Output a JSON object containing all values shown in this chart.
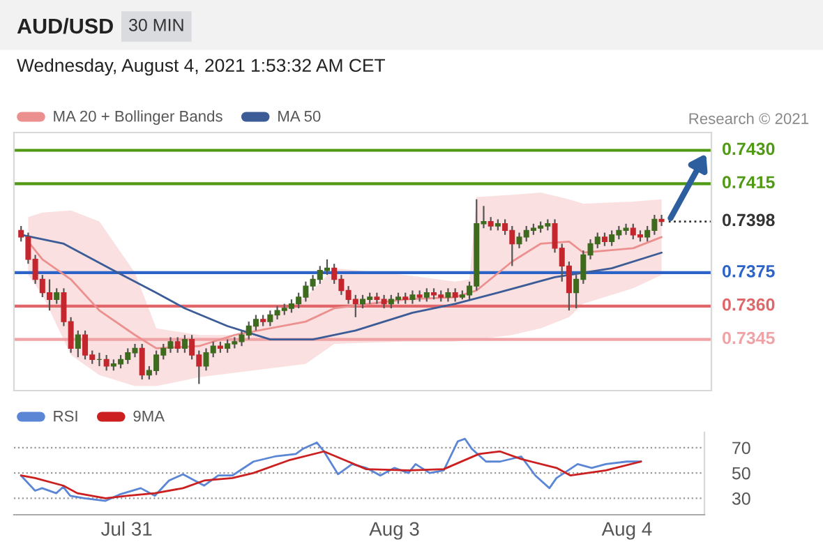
{
  "chart_data": [
    {
      "type": "candlestick",
      "title": "AUD/USD",
      "subtitle": "Wednesday, August 4, 2021 1:53:32 AM CET",
      "annotations": [
        "30 MIN",
        "Research © 2021"
      ],
      "categories": [
        null,
        null,
        null,
        null,
        null,
        null,
        null,
        null,
        null,
        null,
        null,
        null,
        null,
        null,
        null,
        null,
        null,
        null,
        null,
        null,
        null,
        null,
        null,
        null,
        null,
        null,
        null,
        null,
        null,
        null,
        null,
        null,
        null,
        null,
        null,
        null,
        null,
        null,
        null,
        null,
        null,
        null,
        null,
        null,
        null,
        null,
        null,
        null,
        null,
        null,
        null,
        null,
        null,
        null,
        null,
        null,
        null,
        null,
        null,
        null,
        null,
        null,
        null,
        null,
        null,
        null,
        null,
        null,
        null,
        null,
        null,
        null,
        null,
        null,
        null,
        null,
        null,
        null,
        null,
        null,
        null,
        null,
        null,
        null,
        null,
        null,
        null,
        null,
        null,
        null,
        null
      ],
      "ohlc": [
        [
          0.7394,
          0.7396,
          0.7389,
          0.7391
        ],
        [
          0.7391,
          0.7393,
          0.7379,
          0.7381
        ],
        [
          0.7381,
          0.7383,
          0.737,
          0.7372
        ],
        [
          0.7372,
          0.7374,
          0.7364,
          0.7366
        ],
        [
          0.7366,
          0.7372,
          0.7358,
          0.7363
        ],
        [
          0.7363,
          0.7368,
          0.7361,
          0.7366
        ],
        [
          0.7366,
          0.7368,
          0.7351,
          0.7353
        ],
        [
          0.7353,
          0.7355,
          0.7339,
          0.7341
        ],
        [
          0.7341,
          0.7349,
          0.7337,
          0.7347
        ],
        [
          0.7347,
          0.7349,
          0.7336,
          0.7338
        ],
        [
          0.7338,
          0.734,
          0.7334,
          0.7336
        ],
        [
          0.7336,
          0.7339,
          0.7333,
          0.7336
        ],
        [
          0.7336,
          0.7338,
          0.7331,
          0.7333
        ],
        [
          0.7333,
          0.7336,
          0.7331,
          0.7334
        ],
        [
          0.7334,
          0.7338,
          0.7332,
          0.7336
        ],
        [
          0.7336,
          0.7341,
          0.7334,
          0.7339
        ],
        [
          0.7339,
          0.7343,
          0.7337,
          0.7341
        ],
        [
          0.7341,
          0.7343,
          0.7327,
          0.7329
        ],
        [
          0.7329,
          0.7333,
          0.7327,
          0.7331
        ],
        [
          0.7331,
          0.734,
          0.7329,
          0.7338
        ],
        [
          0.7338,
          0.7343,
          0.7336,
          0.7341
        ],
        [
          0.7341,
          0.7346,
          0.7339,
          0.7344
        ],
        [
          0.7344,
          0.7346,
          0.7339,
          0.7341
        ],
        [
          0.7341,
          0.7347,
          0.7339,
          0.7345
        ],
        [
          0.7345,
          0.7347,
          0.7336,
          0.7338
        ],
        [
          0.7338,
          0.734,
          0.7325,
          0.7333
        ],
        [
          0.7333,
          0.7341,
          0.7331,
          0.7339
        ],
        [
          0.7339,
          0.7344,
          0.7337,
          0.7342
        ],
        [
          0.7342,
          0.7344,
          0.7339,
          0.7341
        ],
        [
          0.7341,
          0.7345,
          0.7339,
          0.7343
        ],
        [
          0.7343,
          0.7346,
          0.7341,
          0.7344
        ],
        [
          0.7344,
          0.7349,
          0.7342,
          0.7347
        ],
        [
          0.7347,
          0.7353,
          0.7345,
          0.7351
        ],
        [
          0.7351,
          0.7356,
          0.7349,
          0.7354
        ],
        [
          0.7354,
          0.7356,
          0.7351,
          0.7353
        ],
        [
          0.7353,
          0.7358,
          0.7351,
          0.7356
        ],
        [
          0.7356,
          0.736,
          0.7354,
          0.7358
        ],
        [
          0.7358,
          0.7361,
          0.7356,
          0.7359
        ],
        [
          0.7359,
          0.7363,
          0.7357,
          0.7361
        ],
        [
          0.7361,
          0.7366,
          0.7359,
          0.7364
        ],
        [
          0.7364,
          0.7371,
          0.7362,
          0.7369
        ],
        [
          0.7369,
          0.7374,
          0.7367,
          0.7372
        ],
        [
          0.7372,
          0.7378,
          0.737,
          0.7376
        ],
        [
          0.7376,
          0.7381,
          0.7374,
          0.7377
        ],
        [
          0.7377,
          0.7379,
          0.737,
          0.7372
        ],
        [
          0.7372,
          0.7374,
          0.7365,
          0.7367
        ],
        [
          0.7367,
          0.7369,
          0.7361,
          0.7363
        ],
        [
          0.7363,
          0.7365,
          0.7355,
          0.7361
        ],
        [
          0.7361,
          0.7365,
          0.7359,
          0.7363
        ],
        [
          0.7363,
          0.7366,
          0.7361,
          0.7364
        ],
        [
          0.7364,
          0.7366,
          0.7361,
          0.7363
        ],
        [
          0.7363,
          0.7365,
          0.7359,
          0.7361
        ],
        [
          0.7361,
          0.7365,
          0.7359,
          0.7363
        ],
        [
          0.7363,
          0.7366,
          0.7361,
          0.7364
        ],
        [
          0.7364,
          0.7366,
          0.7361,
          0.7363
        ],
        [
          0.7363,
          0.7367,
          0.7361,
          0.7365
        ],
        [
          0.7365,
          0.7367,
          0.7362,
          0.7364
        ],
        [
          0.7364,
          0.7368,
          0.7362,
          0.7366
        ],
        [
          0.7366,
          0.7368,
          0.7363,
          0.7365
        ],
        [
          0.7365,
          0.7367,
          0.7362,
          0.7364
        ],
        [
          0.7364,
          0.7368,
          0.7362,
          0.7366
        ],
        [
          0.7366,
          0.7368,
          0.7362,
          0.7364
        ],
        [
          0.7364,
          0.7367,
          0.7363,
          0.7365
        ],
        [
          0.7365,
          0.7371,
          0.7363,
          0.7369
        ],
        [
          0.7369,
          0.7408,
          0.7367,
          0.7397
        ],
        [
          0.7397,
          0.7405,
          0.7395,
          0.7398
        ],
        [
          0.7398,
          0.74,
          0.7394,
          0.7396
        ],
        [
          0.7396,
          0.7399,
          0.7394,
          0.7397
        ],
        [
          0.7397,
          0.7399,
          0.7392,
          0.7394
        ],
        [
          0.7394,
          0.7396,
          0.7378,
          0.7388
        ],
        [
          0.7388,
          0.7393,
          0.7386,
          0.7391
        ],
        [
          0.7391,
          0.7396,
          0.7389,
          0.7394
        ],
        [
          0.7394,
          0.7397,
          0.7392,
          0.7395
        ],
        [
          0.7395,
          0.7398,
          0.7393,
          0.7396
        ],
        [
          0.7396,
          0.7399,
          0.7394,
          0.7397
        ],
        [
          0.7397,
          0.7399,
          0.7384,
          0.7386
        ],
        [
          0.7386,
          0.7388,
          0.7371,
          0.7378
        ],
        [
          0.7378,
          0.738,
          0.7358,
          0.7366
        ],
        [
          0.7366,
          0.7374,
          0.7359,
          0.7372
        ],
        [
          0.7372,
          0.7385,
          0.737,
          0.7383
        ],
        [
          0.7383,
          0.739,
          0.7381,
          0.7388
        ],
        [
          0.7388,
          0.7393,
          0.7386,
          0.7391
        ],
        [
          0.7391,
          0.7393,
          0.7387,
          0.7389
        ],
        [
          0.7389,
          0.7394,
          0.7387,
          0.7392
        ],
        [
          0.7392,
          0.7396,
          0.739,
          0.7394
        ],
        [
          0.7394,
          0.7397,
          0.7392,
          0.7395
        ],
        [
          0.7395,
          0.7397,
          0.739,
          0.7392
        ],
        [
          0.7392,
          0.7394,
          0.7389,
          0.7391
        ],
        [
          0.7391,
          0.7396,
          0.7389,
          0.7394
        ],
        [
          0.7394,
          0.7401,
          0.7392,
          0.7399
        ],
        [
          0.7399,
          0.7401,
          0.7396,
          0.7398
        ]
      ],
      "colors": [
        "#c4262e",
        "#c4262e",
        "#c4262e",
        "#c4262e",
        "#c4262e",
        "#3e6b1e",
        "#c4262e",
        "#c4262e",
        "#3e6b1e",
        "#c4262e",
        "#c4262e",
        "#3e6b1e",
        "#c4262e",
        "#3e6b1e",
        "#3e6b1e",
        "#3e6b1e",
        "#3e6b1e",
        "#c4262e",
        "#3e6b1e",
        "#3e6b1e",
        "#3e6b1e",
        "#3e6b1e",
        "#c4262e",
        "#3e6b1e",
        "#c4262e",
        "#c4262e",
        "#3e6b1e",
        "#3e6b1e",
        "#c4262e",
        "#3e6b1e",
        "#3e6b1e",
        "#3e6b1e",
        "#3e6b1e",
        "#3e6b1e",
        "#c4262e",
        "#3e6b1e",
        "#3e6b1e",
        "#3e6b1e",
        "#3e6b1e",
        "#3e6b1e",
        "#3e6b1e",
        "#3e6b1e",
        "#3e6b1e",
        "#3e6b1e",
        "#c4262e",
        "#c4262e",
        "#c4262e",
        "#c4262e",
        "#3e6b1e",
        "#3e6b1e",
        "#c4262e",
        "#c4262e",
        "#3e6b1e",
        "#3e6b1e",
        "#c4262e",
        "#3e6b1e",
        "#c4262e",
        "#3e6b1e",
        "#c4262e",
        "#c4262e",
        "#3e6b1e",
        "#c4262e",
        "#3e6b1e",
        "#3e6b1e",
        "#3e6b1e",
        "#3e6b1e",
        "#c4262e",
        "#3e6b1e",
        "#c4262e",
        "#c4262e",
        "#3e6b1e",
        "#3e6b1e",
        "#3e6b1e",
        "#3e6b1e",
        "#3e6b1e",
        "#c4262e",
        "#c4262e",
        "#c4262e",
        "#3e6b1e",
        "#3e6b1e",
        "#3e6b1e",
        "#3e6b1e",
        "#c4262e",
        "#3e6b1e",
        "#3e6b1e",
        "#3e6b1e",
        "#c4262e",
        "#c4262e",
        "#3e6b1e",
        "#3e6b1e",
        "#c4262e"
      ],
      "series": [
        {
          "name": "MA 20 + Bollinger Bands",
          "type": "line",
          "color": "#ec8f8f",
          "values": [
            null,
            0.7389,
            null,
            0.7381,
            null,
            null,
            null,
            0.7372,
            null,
            null,
            null,
            0.7358,
            null,
            null,
            null,
            null,
            0.7347,
            null,
            null,
            0.7341,
            null,
            null,
            null,
            null,
            null,
            0.7342,
            null,
            null,
            null,
            null,
            0.7347,
            null,
            null,
            null,
            null,
            null,
            null,
            null,
            null,
            null,
            0.7353,
            null,
            null,
            null,
            0.7359,
            null,
            null,
            null,
            null,
            null,
            null,
            null,
            null,
            null,
            0.7363,
            null,
            null,
            null,
            null,
            null,
            null,
            0.7364,
            null,
            0.7366,
            0.7367,
            null,
            null,
            null,
            null,
            0.738,
            null,
            null,
            null,
            0.7388,
            null,
            null,
            null,
            0.7389,
            null,
            0.7384,
            null,
            null,
            null,
            null,
            null,
            null,
            0.7386,
            null,
            null,
            null,
            0.7391
          ],
          "lower": [
            null,
            0.7374,
            null,
            0.7365,
            null,
            null,
            null,
            0.7338,
            null,
            null,
            null,
            0.7329,
            null,
            null,
            null,
            null,
            0.7324,
            null,
            null,
            0.7324,
            null,
            null,
            null,
            null,
            null,
            0.7328,
            null,
            null,
            null,
            null,
            0.733,
            null,
            null,
            null,
            null,
            null,
            null,
            null,
            null,
            null,
            0.7334,
            null,
            null,
            null,
            0.7343,
            null,
            null,
            null,
            null,
            null,
            null,
            null,
            null,
            null,
            0.7344,
            null,
            null,
            null,
            null,
            null,
            null,
            0.7344,
            null,
            0.7345,
            0.7345,
            null,
            null,
            null,
            null,
            0.7347,
            null,
            null,
            null,
            0.735,
            null,
            null,
            null,
            0.7355,
            null,
            0.7361,
            null,
            null,
            null,
            null,
            null,
            null,
            0.7368,
            null,
            null,
            null,
            0.7374
          ],
          "upper": [
            null,
            0.74,
            null,
            0.7402,
            null,
            null,
            null,
            0.7403,
            null,
            null,
            null,
            0.7398,
            null,
            null,
            null,
            null,
            0.7375,
            null,
            null,
            0.735,
            null,
            null,
            null,
            null,
            null,
            0.7347,
            null,
            null,
            null,
            null,
            0.7347,
            null,
            null,
            null,
            null,
            null,
            null,
            null,
            null,
            null,
            0.7364,
            null,
            null,
            null,
            0.7377,
            null,
            null,
            null,
            null,
            null,
            null,
            null,
            null,
            null,
            0.7374,
            null,
            null,
            null,
            null,
            null,
            null,
            0.7371,
            null,
            0.7372,
            0.7409,
            null,
            null,
            null,
            null,
            0.741,
            null,
            null,
            null,
            0.7411,
            null,
            null,
            null,
            0.7408,
            null,
            0.7406,
            null,
            null,
            null,
            null,
            null,
            null,
            0.7407,
            null,
            null,
            null,
            0.7408
          ]
        },
        {
          "name": "MA 50",
          "type": "line",
          "color": "#3b5c96",
          "values": [
            0.7392,
            null,
            null,
            null,
            null,
            null,
            0.7388,
            null,
            null,
            null,
            null,
            null,
            null,
            0.7376,
            null,
            null,
            0.7371,
            null,
            null,
            0.7366,
            null,
            null,
            null,
            0.7359,
            null,
            null,
            null,
            null,
            null,
            0.7351,
            null,
            null,
            null,
            null,
            null,
            0.7345,
            null,
            null,
            null,
            null,
            null,
            0.7345,
            null,
            null,
            null,
            null,
            null,
            0.7349,
            null,
            null,
            null,
            null,
            null,
            null,
            null,
            0.7357,
            null,
            null,
            null,
            null,
            null,
            0.7361,
            null,
            null,
            null,
            null,
            null,
            0.7366,
            null,
            null,
            null,
            null,
            null,
            null,
            null,
            0.7373,
            null,
            null,
            null,
            null,
            null,
            null,
            null,
            0.7377,
            null,
            null,
            null,
            null,
            null,
            null,
            0.7384
          ]
        }
      ],
      "ref_lines": [
        {
          "axis": "y",
          "value": 0.743,
          "label": "0.7430",
          "color": "#4f9a12"
        },
        {
          "axis": "y",
          "value": 0.7415,
          "label": "0.7415",
          "color": "#4f9a12"
        },
        {
          "axis": "y",
          "value": 0.7398,
          "label": "0.7398",
          "color": "#333333",
          "line_style": "dotted"
        },
        {
          "axis": "y",
          "value": 0.7375,
          "label": "0.7375",
          "color": "#2b63c8"
        },
        {
          "axis": "y",
          "value": 0.736,
          "label": "0.7360",
          "color": "#e0666a"
        },
        {
          "axis": "y",
          "value": 0.7345,
          "label": "0.7345",
          "color": "#f0a2a4"
        }
      ],
      "ylim": [
        0.7322,
        0.7438
      ],
      "tick_labels": false,
      "legend": "top left"
    },
    {
      "type": "line",
      "tick_labels": "xy",
      "legend": "top left",
      "grid": "y",
      "series": [
        {
          "name": "RSI",
          "color": "#5b86d6",
          "values": [
            48,
            null,
            36,
            38,
            null,
            34,
            39,
            32,
            null,
            30,
            null,
            null,
            28,
            null,
            33,
            null,
            null,
            38,
            null,
            32,
            null,
            44,
            null,
            49,
            null,
            null,
            40,
            null,
            48,
            null,
            48,
            null,
            null,
            59,
            null,
            null,
            63,
            null,
            null,
            65,
            69,
            null,
            74,
            67,
            null,
            49,
            null,
            57,
            null,
            54,
            null,
            48,
            null,
            54,
            null,
            50,
            57,
            null,
            50,
            null,
            52,
            null,
            75,
            77,
            69,
            null,
            59,
            null,
            59,
            null,
            null,
            63,
            null,
            48,
            null,
            38,
            46,
            null,
            null,
            57,
            null,
            54,
            null,
            57,
            null,
            null,
            59,
            null,
            59,
            null,
            null
          ]
        },
        {
          "name": "9MA",
          "color": "#cc1f1f",
          "values": [
            48,
            null,
            46,
            null,
            null,
            null,
            40,
            null,
            34,
            null,
            null,
            null,
            30,
            null,
            null,
            32,
            null,
            null,
            null,
            34,
            null,
            null,
            null,
            38,
            null,
            null,
            44,
            null,
            null,
            null,
            46,
            null,
            null,
            50,
            null,
            null,
            null,
            null,
            60,
            null,
            null,
            null,
            null,
            67,
            null,
            null,
            null,
            null,
            null,
            53,
            null,
            null,
            null,
            null,
            null,
            52,
            null,
            null,
            null,
            null,
            53,
            null,
            null,
            null,
            null,
            65,
            null,
            null,
            67,
            null,
            null,
            61,
            null,
            null,
            null,
            null,
            54,
            null,
            48,
            null,
            null,
            null,
            null,
            52,
            null,
            null,
            null,
            null,
            59,
            null,
            null
          ]
        }
      ],
      "categories": [
        null,
        null,
        null,
        null,
        null,
        null,
        null,
        null,
        null,
        null,
        null,
        null,
        null,
        null,
        null,
        "Jul 31",
        null,
        null,
        null,
        null,
        null,
        null,
        null,
        null,
        null,
        null,
        null,
        null,
        null,
        null,
        null,
        null,
        null,
        null,
        null,
        null,
        null,
        null,
        null,
        null,
        null,
        null,
        null,
        null,
        null,
        null,
        null,
        null,
        null,
        null,
        null,
        null,
        null,
        "Aug 3",
        null,
        null,
        null,
        null,
        null,
        null,
        null,
        null,
        null,
        null,
        null,
        null,
        null,
        null,
        null,
        null,
        null,
        null,
        null,
        null,
        null,
        null,
        null,
        null,
        null,
        null,
        null,
        null,
        null,
        null,
        null,
        null,
        "Aug 4",
        null,
        null,
        null,
        null
      ],
      "ylim": [
        17,
        82
      ],
      "yticks": [
        30,
        50,
        70
      ]
    }
  ]
}
